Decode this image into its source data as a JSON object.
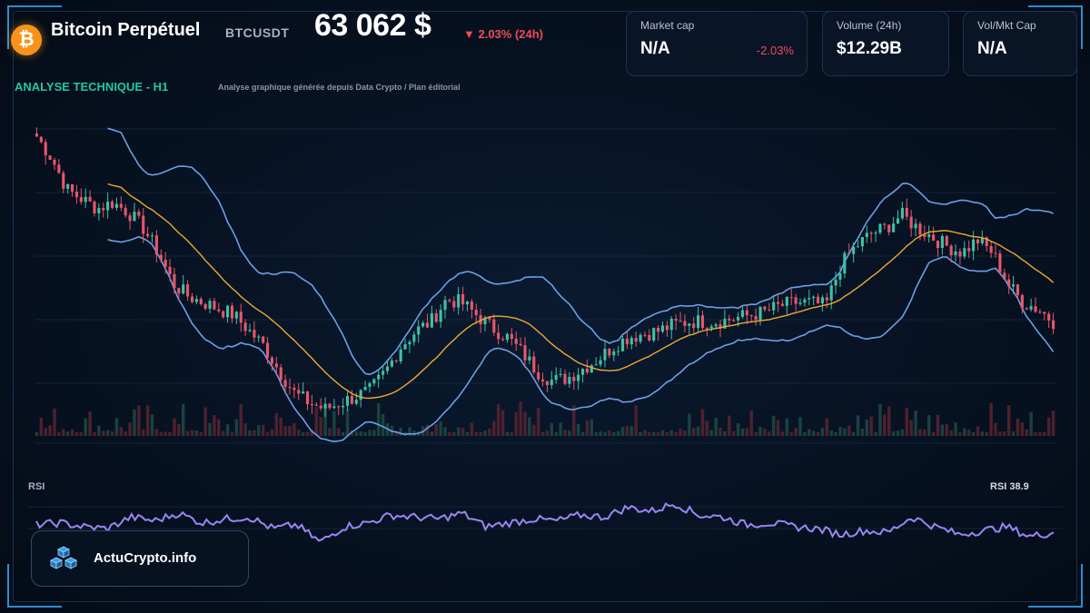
{
  "header": {
    "coin_symbol": "₿",
    "title": "Bitcoin Perpétuel",
    "ticker": "BTCUSDT",
    "price": "63 062 $",
    "change": "▼ 2.03% (24h)"
  },
  "cards": {
    "market_cap": {
      "label": "Market cap",
      "value": "N/A",
      "change": "-2.03%"
    },
    "volume": {
      "label": "Volume (24h)",
      "value": "$12.29B"
    },
    "vol_mkt_cap": {
      "label": "Vol/Mkt Cap",
      "value": "N/A"
    }
  },
  "section": {
    "title": "ANALYSE TECHNIQUE - H1",
    "subtitle": "Analyse graphique générée depuis Data Crypto / Plan éditorial"
  },
  "rsi": {
    "label": "RSI",
    "value": "RSI 38.9"
  },
  "brand": {
    "name": "ActuCrypto.info",
    "icon": "cubes-icon"
  },
  "colors": {
    "bullish": "#3fc0a4",
    "bearish": "#e8566a",
    "bollinger": "#6d9fe6",
    "moving_average": "#f0a830",
    "rsi_line": "#9a86f2",
    "accent": "#20c9a6",
    "negative": "#f04a5a"
  },
  "chart_data": {
    "type": "candlestick",
    "interval": "H1",
    "candles_approx": 230,
    "price_path_relative": [
      0.97,
      0.9,
      0.8,
      0.77,
      0.74,
      0.76,
      0.73,
      0.68,
      0.6,
      0.5,
      0.46,
      0.44,
      0.42,
      0.4,
      0.35,
      0.3,
      0.22,
      0.15,
      0.12,
      0.1,
      0.12,
      0.14,
      0.16,
      0.22,
      0.3,
      0.35,
      0.38,
      0.45,
      0.44,
      0.4,
      0.36,
      0.33,
      0.28,
      0.22,
      0.19,
      0.2,
      0.23,
      0.26,
      0.3,
      0.33,
      0.34,
      0.35,
      0.37,
      0.38,
      0.38,
      0.38,
      0.39,
      0.4,
      0.41,
      0.43,
      0.44,
      0.44,
      0.43,
      0.56,
      0.62,
      0.66,
      0.68,
      0.72,
      0.68,
      0.65,
      0.62,
      0.6,
      0.64,
      0.6,
      0.5,
      0.44,
      0.42,
      0.38
    ],
    "rsi_path": [
      62,
      64,
      60,
      58,
      70,
      66,
      74,
      64,
      68,
      70,
      58,
      62,
      44,
      60,
      64,
      72,
      70,
      68,
      74,
      60,
      64,
      68,
      66,
      72,
      70,
      80,
      76,
      84,
      72,
      70,
      62,
      64,
      60,
      58,
      52,
      56,
      54,
      70,
      60,
      52,
      56,
      60,
      50,
      54
    ],
    "rsi_current": 38.9,
    "indicators": [
      "Bollinger Bands",
      "Moving Average",
      "Volume",
      "RSI"
    ]
  }
}
